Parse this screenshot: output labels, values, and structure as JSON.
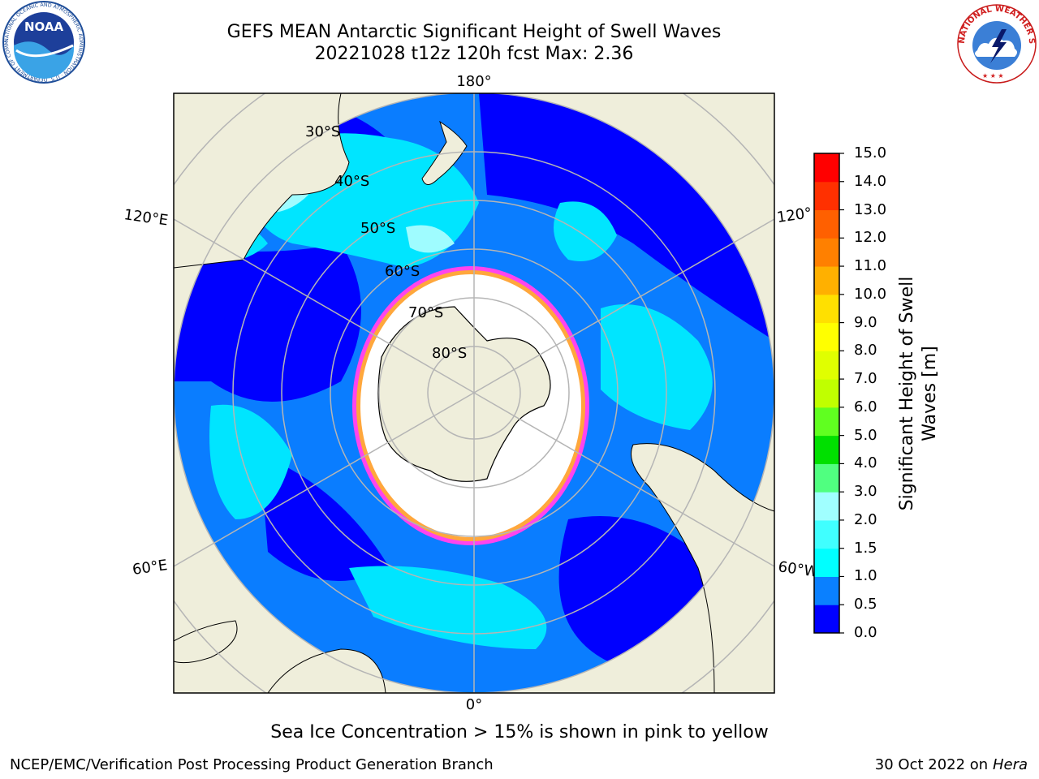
{
  "title": {
    "line1": "GEFS MEAN Antarctic Significant Height of Swell Waves",
    "line2": "20221028 t12z 120h fcst   Max: 2.36"
  },
  "map": {
    "longitude_labels": {
      "top": "180°",
      "bottom": "0°",
      "upper_left": "120°E",
      "upper_right": "120°",
      "lower_left": "60°E",
      "lower_right": "60°W"
    },
    "latitude_labels": [
      "30°S",
      "40°S",
      "50°S",
      "60°S",
      "70°S",
      "80°S"
    ],
    "colors": {
      "land": "#efeedb",
      "ocean_low": "#0000ff",
      "ocean_mid": "#0a7dff",
      "ocean_high": "#00e5ff",
      "swell_2": "#9ffcff",
      "sea_ice": "#ffffff",
      "ice_edge_pink": "#ff44ee",
      "ice_edge_yellow": "#ffc800",
      "graticule": "#b5b5b5"
    }
  },
  "colorbar": {
    "label_line1": "Significant Height of Swell",
    "label_line2": "Waves [m]",
    "ticks": [
      "0.0",
      "0.5",
      "1.0",
      "1.5",
      "2.0",
      "3.0",
      "4.0",
      "5.0",
      "6.0",
      "7.0",
      "8.0",
      "9.0",
      "10.0",
      "11.0",
      "12.0",
      "13.0",
      "14.0",
      "15.0"
    ],
    "colors": [
      "#0000ff",
      "#0a80ff",
      "#00ffff",
      "#40ffff",
      "#a0ffff",
      "#50ff80",
      "#00e000",
      "#60ff20",
      "#c0ff00",
      "#e0ff00",
      "#ffff00",
      "#ffe000",
      "#ffb000",
      "#ff8000",
      "#ff6000",
      "#ff3000",
      "#ff0000"
    ]
  },
  "logos": {
    "noaa_text": "NOAA",
    "noaa_ring": "NATIONAL OCEANIC AND ATMOSPHERIC ADMINISTRATION · U.S. DEPARTMENT OF COMMERCE",
    "nws_ring": "NATIONAL WEATHER SERVICE"
  },
  "note": "Sea Ice Concentration > 15% is shown in pink to yellow",
  "footer": {
    "left": "NCEP/EMC/Verification Post Processing Product Generation Branch",
    "right_prefix": "30 Oct 2022 on ",
    "right_machine": "Hera"
  }
}
